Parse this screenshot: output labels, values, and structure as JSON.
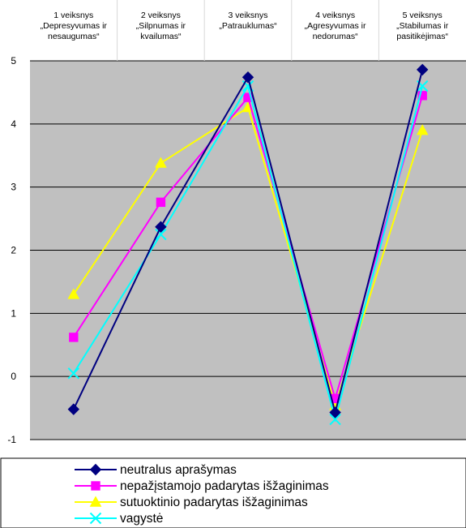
{
  "chart_data": {
    "type": "line",
    "categories": [
      [
        "1 veiksnys",
        "„Depresyvumas ir",
        "nesaugumas“"
      ],
      [
        "2 veiksnys",
        "„Silpnumas ir",
        "kvailumas“"
      ],
      [
        "3 veiksnys",
        "„Patrauklumas“"
      ],
      [
        "4 veiksnys",
        "„Agresyvumas ir",
        "nedorumas“"
      ],
      [
        "5 veiksnys",
        "„Stabilumas ir",
        "pasitikėjimas“"
      ]
    ],
    "ylim": [
      -1,
      5
    ],
    "yticks": [
      "-1",
      "0",
      "1",
      "2",
      "3",
      "4",
      "5"
    ],
    "grid": true,
    "plot_background": "#c0c0c0",
    "legend_position": "bottom",
    "series": [
      {
        "name": "neutralus aprašymas",
        "color": "#000080",
        "marker": "diamond",
        "values": [
          -0.52,
          2.37,
          4.74,
          -0.57,
          4.86
        ]
      },
      {
        "name": "nepažįstamojo padarytas išžaginimas",
        "color": "#ff00ff",
        "marker": "square",
        "values": [
          0.62,
          2.76,
          4.42,
          -0.35,
          4.45
        ]
      },
      {
        "name": "sutuoktinio padarytas išžaginimas",
        "color": "#ffff00",
        "marker": "triangle",
        "values": [
          1.3,
          3.38,
          4.26,
          -0.46,
          3.9
        ]
      },
      {
        "name": "vagystė",
        "color": "#00ffff",
        "marker": "x",
        "values": [
          0.05,
          2.25,
          4.6,
          -0.68,
          4.6
        ]
      }
    ]
  }
}
